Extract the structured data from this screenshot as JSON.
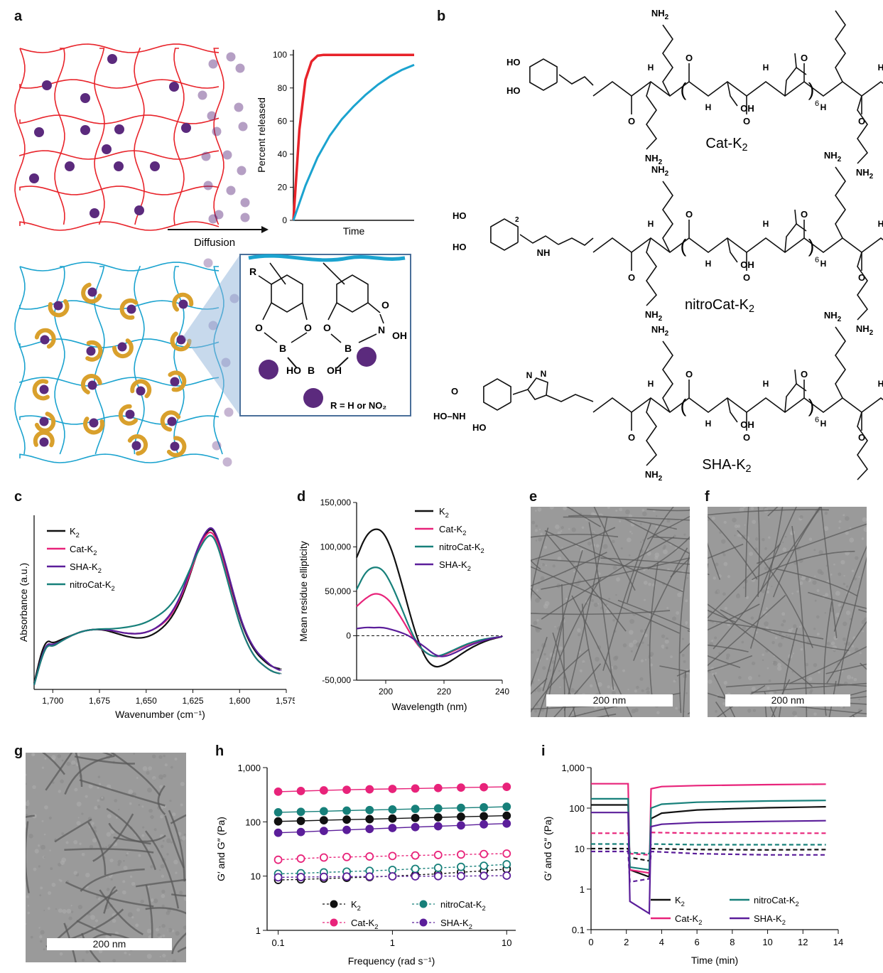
{
  "panels": {
    "a": "a",
    "b": "b",
    "c": "c",
    "d": "d",
    "e": "e",
    "f": "f",
    "g": "g",
    "h": "h",
    "i": "i"
  },
  "panel_a": {
    "diffusion_label": "Diffusion",
    "inset": {
      "r_label": "R",
      "o": "O",
      "b": "B",
      "n": "N",
      "oh": "OH",
      "ho_b_oh_left": "HO",
      "ho_b_oh_b": "B",
      "ho_b_oh_right": "OH",
      "r_def": "R = H or NO₂"
    },
    "colors": {
      "release_fast": "#e8232a",
      "release_slow": "#1ba3cf",
      "network_red": "#e8232a",
      "network_blue": "#1ba3cf",
      "payload": "#5b2a7d",
      "binder": "#d9a02c"
    }
  },
  "panel_b": {
    "structures": [
      {
        "name": "Cat-K",
        "sub": "2"
      },
      {
        "name": "nitroCat-K",
        "sub": "2"
      },
      {
        "name": "SHA-K",
        "sub": "2"
      }
    ],
    "repeat": "6",
    "atoms": {
      "nh2": "NH",
      "two": "2",
      "h": "H",
      "n": "N",
      "o": "O",
      "oh": "OH",
      "ho": "HO",
      "no2": "NO",
      "nh": "NH"
    }
  },
  "tem_scale": {
    "e": "200 nm",
    "f": "200 nm",
    "g": "200 nm"
  },
  "chart_data": [
    {
      "panel": "a",
      "type": "line",
      "xlabel": "Time",
      "ylabel": "Percent released",
      "ylim": [
        0,
        100
      ],
      "yticks": [
        "0",
        "20",
        "40",
        "60",
        "80",
        "100"
      ],
      "series": [
        {
          "color": "#e8232a",
          "points": [
            [
              0,
              0
            ],
            [
              0.05,
              55
            ],
            [
              0.1,
              85
            ],
            [
              0.15,
              96
            ],
            [
              0.2,
              99.5
            ],
            [
              0.25,
              100
            ],
            [
              1,
              100
            ]
          ]
        },
        {
          "color": "#1ba3cf",
          "points": [
            [
              0,
              0
            ],
            [
              0.1,
              21
            ],
            [
              0.2,
              38
            ],
            [
              0.3,
              51
            ],
            [
              0.4,
              61
            ],
            [
              0.5,
              69
            ],
            [
              0.6,
              76
            ],
            [
              0.7,
              82
            ],
            [
              0.8,
              87
            ],
            [
              0.9,
              91
            ],
            [
              1,
              94
            ]
          ]
        }
      ]
    },
    {
      "panel": "c",
      "type": "line",
      "xlabel": "Wavenumber (cm⁻¹)",
      "ylabel": "Absorbance (a.u.)",
      "xlim": [
        1710,
        1575
      ],
      "xticks": [
        "1,700",
        "1,675",
        "1,650",
        "1,625",
        "1,600",
        "1,575"
      ],
      "legend": [
        {
          "name": "K",
          "sub": "2",
          "color": "#111111"
        },
        {
          "name": "Cat-K",
          "sub": "2",
          "color": "#e8237a"
        },
        {
          "name": "SHA-K",
          "sub": "2",
          "color": "#5b1e9a"
        },
        {
          "name": "nitroCat-K",
          "sub": "2",
          "color": "#17807a"
        }
      ],
      "series": [
        {
          "name": "K2",
          "color": "#111111",
          "x": [
            1710,
            1706,
            1703,
            1700,
            1696,
            1690,
            1683,
            1675,
            1668,
            1660,
            1652,
            1645,
            1638,
            1632,
            1627,
            1622,
            1618,
            1615,
            1612,
            1608,
            1603,
            1598,
            1592,
            1586,
            1582,
            1578
          ],
          "y": [
            0.02,
            0.22,
            0.29,
            0.27,
            0.29,
            0.32,
            0.35,
            0.36,
            0.34,
            0.31,
            0.3,
            0.33,
            0.4,
            0.52,
            0.68,
            0.86,
            0.96,
            0.99,
            0.93,
            0.78,
            0.56,
            0.36,
            0.22,
            0.15,
            0.12,
            0.11
          ]
        },
        {
          "name": "Cat-K2",
          "color": "#e8237a",
          "x": [
            1710,
            1706,
            1703,
            1700,
            1696,
            1690,
            1683,
            1675,
            1668,
            1660,
            1652,
            1645,
            1638,
            1632,
            1627,
            1622,
            1618,
            1615,
            1612,
            1608,
            1603,
            1598,
            1592,
            1586,
            1582,
            1578
          ],
          "y": [
            0.01,
            0.18,
            0.26,
            0.25,
            0.28,
            0.32,
            0.35,
            0.36,
            0.35,
            0.33,
            0.33,
            0.36,
            0.42,
            0.54,
            0.69,
            0.86,
            0.95,
            0.97,
            0.91,
            0.75,
            0.52,
            0.32,
            0.18,
            0.12,
            0.09,
            0.08
          ]
        },
        {
          "name": "SHA-K2",
          "color": "#5b1e9a",
          "x": [
            1710,
            1706,
            1703,
            1700,
            1696,
            1690,
            1683,
            1675,
            1668,
            1660,
            1652,
            1645,
            1638,
            1632,
            1627,
            1622,
            1618,
            1615,
            1612,
            1608,
            1603,
            1598,
            1592,
            1586,
            1582,
            1578
          ],
          "y": [
            0.01,
            0.19,
            0.27,
            0.26,
            0.28,
            0.32,
            0.35,
            0.36,
            0.35,
            0.33,
            0.33,
            0.36,
            0.43,
            0.55,
            0.71,
            0.88,
            0.97,
            1.0,
            0.94,
            0.79,
            0.57,
            0.37,
            0.23,
            0.16,
            0.12,
            0.1
          ]
        },
        {
          "name": "nitroCat-K2",
          "color": "#17807a",
          "x": [
            1710,
            1706,
            1703,
            1700,
            1696,
            1690,
            1683,
            1675,
            1668,
            1660,
            1652,
            1645,
            1638,
            1632,
            1627,
            1622,
            1618,
            1615,
            1612,
            1608,
            1603,
            1598,
            1592,
            1586,
            1582,
            1578
          ],
          "y": [
            0.01,
            0.18,
            0.26,
            0.25,
            0.28,
            0.32,
            0.35,
            0.36,
            0.36,
            0.37,
            0.39,
            0.43,
            0.49,
            0.59,
            0.72,
            0.85,
            0.93,
            0.95,
            0.89,
            0.73,
            0.51,
            0.32,
            0.18,
            0.12,
            0.09,
            0.08
          ]
        }
      ]
    },
    {
      "panel": "d",
      "type": "line",
      "xlabel": "Wavelength (nm)",
      "ylabel": "Mean residue ellipticity",
      "xlim": [
        190,
        240
      ],
      "ylim": [
        -50000,
        150000
      ],
      "yticks": [
        "-50,000",
        "0",
        "50,000",
        "100,000",
        "150,000"
      ],
      "xticks": [
        "200",
        "220",
        "240"
      ],
      "legend": [
        {
          "name": "K",
          "sub": "2",
          "color": "#111111"
        },
        {
          "name": "Cat-K",
          "sub": "2",
          "color": "#e8237a"
        },
        {
          "name": "nitroCat-K",
          "sub": "2",
          "color": "#17807a"
        },
        {
          "name": "SHA-K",
          "sub": "2",
          "color": "#5b1e9a"
        }
      ],
      "series": [
        {
          "name": "K2",
          "color": "#111111",
          "x": [
            190,
            193,
            196,
            199,
            202,
            205,
            208,
            211,
            214,
            217,
            220,
            224,
            228,
            232,
            236,
            240
          ],
          "y": [
            88000,
            112000,
            121000,
            118000,
            98000,
            65000,
            28000,
            -5000,
            -28000,
            -36000,
            -33000,
            -25000,
            -16000,
            -9000,
            -4000,
            -1000
          ]
        },
        {
          "name": "Cat-K2",
          "color": "#e8237a",
          "x": [
            190,
            193,
            196,
            199,
            202,
            205,
            208,
            211,
            214,
            217,
            220,
            224,
            228,
            232,
            236,
            240
          ],
          "y": [
            33000,
            42000,
            48000,
            46000,
            37000,
            22000,
            5000,
            -11000,
            -20000,
            -24000,
            -22000,
            -16000,
            -10000,
            -6000,
            -3000,
            -1000
          ]
        },
        {
          "name": "nitroCat-K2",
          "color": "#17807a",
          "x": [
            190,
            193,
            196,
            199,
            202,
            205,
            208,
            211,
            214,
            217,
            220,
            224,
            228,
            232,
            236,
            240
          ],
          "y": [
            52000,
            72000,
            78000,
            75000,
            58000,
            35000,
            10000,
            -10000,
            -20000,
            -24000,
            -21000,
            -15000,
            -9000,
            -5000,
            -2500,
            -1000
          ]
        },
        {
          "name": "SHA-K2",
          "color": "#5b1e9a",
          "x": [
            190,
            193,
            196,
            199,
            202,
            205,
            208,
            211,
            214,
            217,
            220,
            224,
            228,
            232,
            236,
            240
          ],
          "y": [
            8000,
            9500,
            9000,
            9500,
            7000,
            4000,
            0,
            -7000,
            -14000,
            -22000,
            -24000,
            -19000,
            -12000,
            -7000,
            -3000,
            -1000
          ]
        }
      ]
    },
    {
      "panel": "h",
      "type": "scatter",
      "xlabel": "Frequency (rad s⁻¹)",
      "ylabel": "G′ and G″ (Pa)",
      "scale": "log-log",
      "xlim": [
        0.08,
        12
      ],
      "ylim": [
        1,
        1000
      ],
      "xticks": [
        "0.1",
        "1",
        "10"
      ],
      "yticks": [
        "1",
        "10",
        "100",
        "1,000"
      ],
      "legend": [
        {
          "name": "K",
          "sub": "2",
          "color": "#111111"
        },
        {
          "name": "nitroCat-K",
          "sub": "2",
          "color": "#17807a"
        },
        {
          "name": "Cat-K",
          "sub": "2",
          "color": "#e8237a"
        },
        {
          "name": "SHA-K",
          "sub": "2",
          "color": "#5b1e9a"
        }
      ],
      "x": [
        0.1,
        0.158,
        0.251,
        0.398,
        0.631,
        1,
        1.585,
        2.512,
        3.981,
        6.31,
        10
      ],
      "series": [
        {
          "name": "K2 G′",
          "color": "#111111",
          "filled": true,
          "values": [
            102,
            104,
            107,
            110,
            112,
            115,
            118,
            121,
            124,
            127,
            130
          ]
        },
        {
          "name": "K2 G″",
          "color": "#111111",
          "filled": false,
          "values": [
            8.5,
            8.7,
            9.0,
            9.3,
            9.6,
            10,
            10.5,
            11,
            11.8,
            12.5,
            13.5
          ]
        },
        {
          "name": "Cat-K2 G′",
          "color": "#e8237a",
          "filled": true,
          "values": [
            360,
            370,
            380,
            390,
            398,
            405,
            412,
            420,
            428,
            435,
            442
          ]
        },
        {
          "name": "Cat-K2 G″",
          "color": "#e8237a",
          "filled": false,
          "values": [
            20,
            21,
            22,
            22.5,
            23,
            23.5,
            24,
            24.5,
            25,
            25.5,
            26
          ]
        },
        {
          "name": "nitroCat-K2 G′",
          "color": "#17807a",
          "filled": true,
          "values": [
            150,
            153,
            157,
            161,
            165,
            169,
            173,
            177,
            181,
            185,
            190
          ]
        },
        {
          "name": "nitroCat-K2 G″",
          "color": "#17807a",
          "filled": false,
          "values": [
            11,
            11.3,
            11.7,
            12.1,
            12.5,
            13,
            13.6,
            14.2,
            14.8,
            15.5,
            16.5
          ]
        },
        {
          "name": "SHA-K2 G′",
          "color": "#5b1e9a",
          "filled": true,
          "values": [
            63,
            65,
            68,
            71,
            74,
            77,
            80,
            83,
            86,
            90,
            93
          ]
        },
        {
          "name": "SHA-K2 G″",
          "color": "#5b1e9a",
          "filled": false,
          "values": [
            9.5,
            9.6,
            9.7,
            9.8,
            9.8,
            9.9,
            9.9,
            10,
            10,
            10.1,
            10.2
          ]
        }
      ]
    },
    {
      "panel": "i",
      "type": "line",
      "xlabel": "Time (min)",
      "ylabel": "G′ and G″ (Pa)",
      "scale": "log-y",
      "xlim": [
        0,
        14
      ],
      "ylim": [
        0.1,
        1000
      ],
      "xticks": [
        "0",
        "2",
        "4",
        "6",
        "8",
        "10",
        "12",
        "14"
      ],
      "yticks": [
        "0.1",
        "1",
        "10",
        "100",
        "1,000"
      ],
      "legend": [
        {
          "name": "K",
          "sub": "2",
          "color": "#111111"
        },
        {
          "name": "nitroCat-K",
          "sub": "2",
          "color": "#17807a"
        },
        {
          "name": "Cat-K",
          "sub": "2",
          "color": "#e8237a"
        },
        {
          "name": "SHA-K",
          "sub": "2",
          "color": "#5b1e9a"
        }
      ],
      "series": [
        {
          "name": "K2 G′",
          "color": "#111111",
          "dash": false,
          "x": [
            0,
            2.1,
            2.2,
            3.3,
            3.4,
            4,
            6,
            8,
            10,
            13.3
          ],
          "y": [
            120,
            120,
            3,
            2,
            55,
            75,
            90,
            97,
            102,
            108
          ]
        },
        {
          "name": "K2 G″",
          "color": "#111111",
          "dash": true,
          "x": [
            0,
            2.1,
            2.2,
            3.3,
            3.4,
            6,
            10,
            13.3
          ],
          "y": [
            10,
            10,
            6,
            5,
            10,
            9.5,
            9.3,
            9.5
          ]
        },
        {
          "name": "Cat-K2 G′",
          "color": "#e8237a",
          "dash": false,
          "x": [
            0,
            2.1,
            2.2,
            3.3,
            3.4,
            4,
            6,
            10,
            13.3
          ],
          "y": [
            400,
            400,
            3,
            2.5,
            300,
            340,
            360,
            380,
            390
          ]
        },
        {
          "name": "Cat-K2 G″",
          "color": "#e8237a",
          "dash": true,
          "x": [
            0,
            2.1,
            2.2,
            3.3,
            3.4,
            6,
            10,
            13.3
          ],
          "y": [
            24,
            24,
            7.5,
            7,
            25,
            24,
            24,
            24
          ]
        },
        {
          "name": "nitroCat-K2 G′",
          "color": "#17807a",
          "dash": false,
          "x": [
            0,
            2.1,
            2.2,
            3.3,
            3.4,
            4,
            6,
            10,
            13.3
          ],
          "y": [
            170,
            170,
            3.5,
            3,
            100,
            125,
            140,
            150,
            155
          ]
        },
        {
          "name": "nitroCat-K2 G″",
          "color": "#17807a",
          "dash": true,
          "x": [
            0,
            2.1,
            2.2,
            3.3,
            3.4,
            6,
            10,
            13.3
          ],
          "y": [
            13,
            13,
            8,
            7.5,
            13,
            12.5,
            12.5,
            12.5
          ]
        },
        {
          "name": "SHA-K2 G′",
          "color": "#5b1e9a",
          "dash": false,
          "x": [
            0,
            2.1,
            2.2,
            3.3,
            3.4,
            4,
            6,
            10,
            13.3
          ],
          "y": [
            78,
            78,
            0.5,
            0.25,
            35,
            40,
            44,
            47,
            49
          ]
        },
        {
          "name": "SHA-K2 G″",
          "color": "#5b1e9a",
          "dash": true,
          "x": [
            0,
            2.1,
            2.2,
            3.3,
            3.4,
            6,
            10,
            13.3
          ],
          "y": [
            8.5,
            8.5,
            1.5,
            1.8,
            8.5,
            7.5,
            7,
            7
          ]
        }
      ]
    }
  ]
}
